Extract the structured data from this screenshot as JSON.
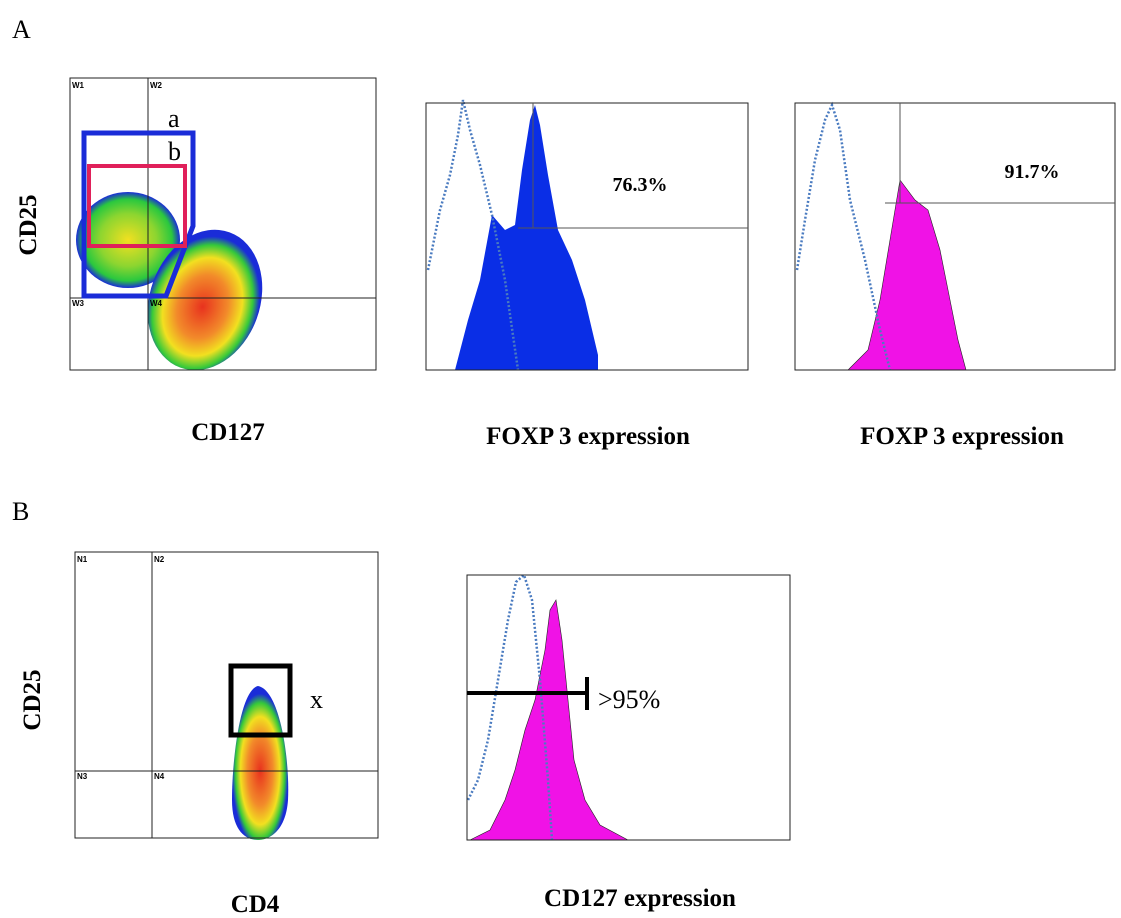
{
  "panel_a": {
    "label": "A",
    "plot1": {
      "y_label": "CD25",
      "x_label": "CD127",
      "gate_a": "a",
      "gate_b": "b",
      "quadrants": [
        "W1",
        "W2",
        "W3",
        "W4"
      ]
    },
    "plot2": {
      "x_label": "FOXP 3 expression",
      "annotation": "76.3%"
    },
    "plot3": {
      "x_label": "FOXP 3 expression",
      "annotation": "91.7%"
    }
  },
  "panel_b": {
    "label": "B",
    "plot1": {
      "y_label": "CD25",
      "x_label": "CD4",
      "gate": "x",
      "quadrants": [
        "N1",
        "N2",
        "N3",
        "N4"
      ]
    },
    "plot2": {
      "x_label": "CD127 expression",
      "annotation": ">95%"
    }
  }
}
